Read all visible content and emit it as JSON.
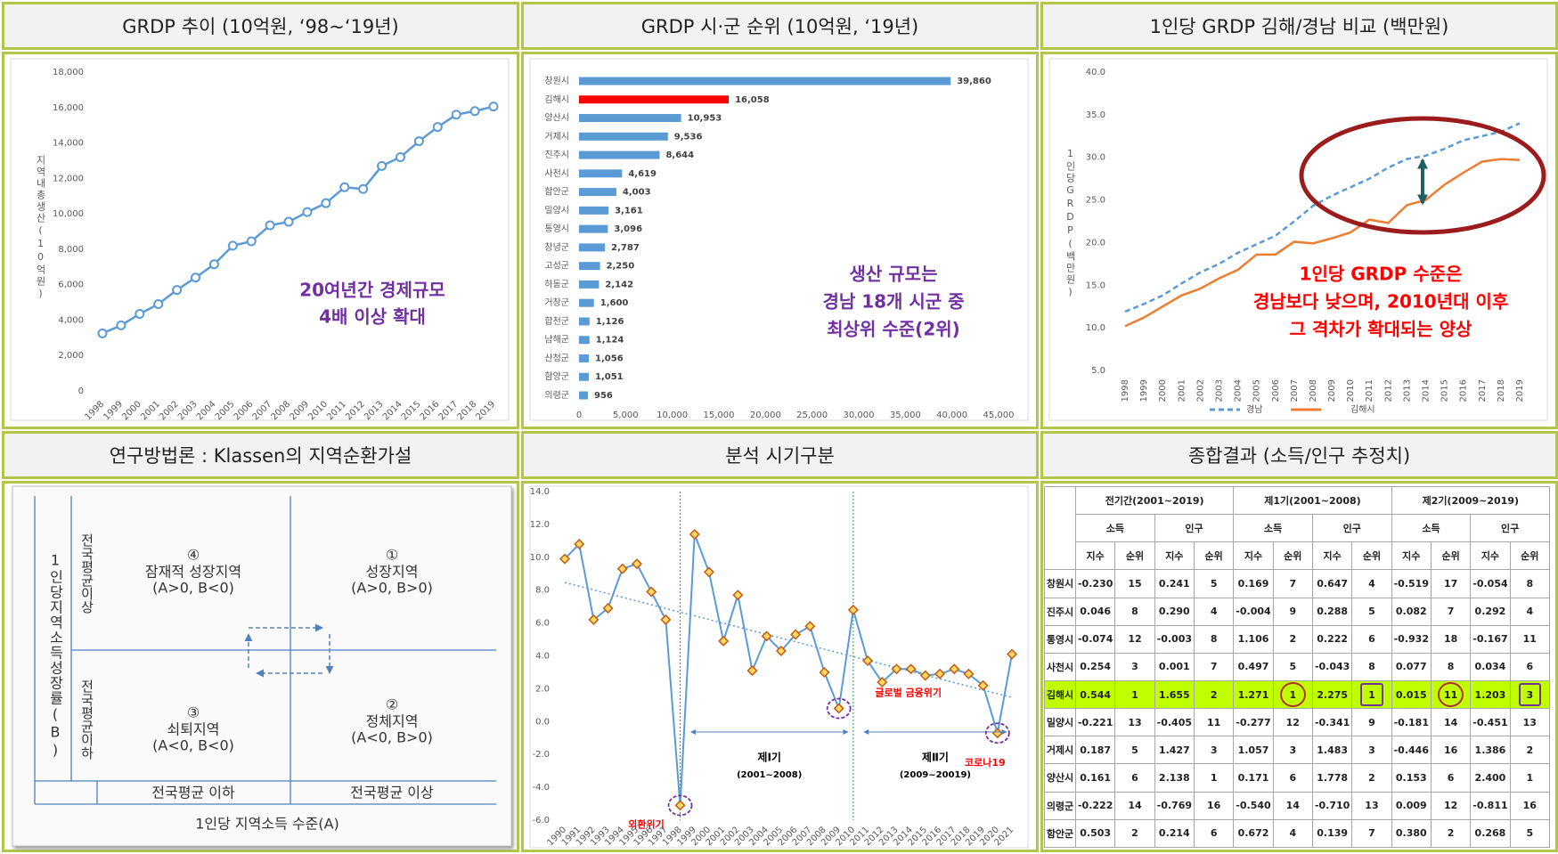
{
  "headers": [
    "GRDP 추이 (10억원, ‘98~‘19년)",
    "GRDP 시·군 순위 (10억원, ‘19년)",
    "1인당 GRDP 김해/경남 비교 (백만원)",
    "연구방법론 : Klassen의 지역순환가설",
    "분석 시기구분",
    "종합결과 (소득/인구 추정치)"
  ],
  "chart_data": [
    {
      "type": "line",
      "y_label": "지역내총생산(10억원)",
      "categories": [
        "1998",
        "1999",
        "2000",
        "2001",
        "2002",
        "2003",
        "2004",
        "2005",
        "2006",
        "2007",
        "2008",
        "2009",
        "2010",
        "2011",
        "2012",
        "2013",
        "2014",
        "2015",
        "2016",
        "2017",
        "2018",
        "2019"
      ],
      "values": [
        3250,
        3700,
        4350,
        4900,
        5700,
        6400,
        7150,
        8200,
        8450,
        9350,
        9550,
        10100,
        10600,
        11500,
        11400,
        12700,
        13200,
        14100,
        14900,
        15600,
        15800,
        16058
      ],
      "color": "#5b9bd5",
      "marker": "circle",
      "ylim": [
        0,
        18000
      ],
      "yticks": [
        0,
        {
          "value": 2000,
          "label": "2,000"
        },
        {
          "value": 4000,
          "label": "4,000"
        },
        {
          "value": 6000,
          "label": "6,000"
        },
        {
          "value": 8000,
          "label": "8,000"
        },
        {
          "value": 10000,
          "label": "10,000"
        },
        {
          "value": 12000,
          "label": "12,000"
        },
        {
          "value": 14000,
          "label": "14,000"
        },
        {
          "value": 16000,
          "label": "16,000"
        },
        {
          "value": 18000,
          "label": "18,000"
        }
      ],
      "grid": false,
      "annotation": [
        "20여년간 경제규모",
        "4배 이상 확대"
      ],
      "annotation_color": "#7030a0"
    },
    {
      "type": "bar",
      "orientation": "horizontal",
      "categories": [
        "창원시",
        "김해시",
        "양산시",
        "거제시",
        "진주시",
        "사천시",
        "함안군",
        "밀양시",
        "통영시",
        "창녕군",
        "고성군",
        "하동군",
        "거창군",
        "합천군",
        "남해군",
        "산청군",
        "함양군",
        "의령군"
      ],
      "values": [
        39860,
        16058,
        10953,
        9536,
        8644,
        4619,
        4003,
        3161,
        3096,
        2787,
        2250,
        2142,
        1600,
        1126,
        1124,
        1056,
        1051,
        956
      ],
      "value_labels": [
        "39,860",
        "16,058",
        "10,953",
        "9,536",
        "8,644",
        "4,619",
        "4,003",
        "3,161",
        "3,096",
        "2,787",
        "2,250",
        "2,142",
        "1,600",
        "1,126",
        "1,124",
        "1,056",
        "1,051",
        "956"
      ],
      "color": "#5b9bd5",
      "highlight": "김해시",
      "highlight_color": "#ff0000",
      "xlim": [
        0,
        45000
      ],
      "xticks": [
        0,
        {
          "value": 5000,
          "label": "5,000"
        },
        {
          "value": 10000,
          "label": "10,000"
        },
        {
          "value": 15000,
          "label": "15,000"
        },
        {
          "value": 20000,
          "label": "20,000"
        },
        {
          "value": 25000,
          "label": "25,000"
        },
        {
          "value": 30000,
          "label": "30,000"
        },
        {
          "value": 35000,
          "label": "35,000"
        },
        {
          "value": 40000,
          "label": "40,000"
        },
        {
          "value": 45000,
          "label": "45,000"
        }
      ],
      "annotation": [
        "생산 규모는",
        "경남 18개 시군 중",
        "최상위 수준(2위)"
      ],
      "annotation_color": "#7030a0"
    },
    {
      "type": "line",
      "y_label": "1인당GRDP(백만원)",
      "categories": [
        "1998",
        "1999",
        "2000",
        "2001",
        "2002",
        "2003",
        "2004",
        "2005",
        "2006",
        "2007",
        "2008",
        "2009",
        "2010",
        "2011",
        "2012",
        "2013",
        "2014",
        "2015",
        "2016",
        "2017",
        "2018",
        "2019"
      ],
      "series": [
        {
          "name": "경남",
          "color": "#5b9bd5",
          "dashed": true,
          "values": [
            11.9,
            12.8,
            13.8,
            15.2,
            16.5,
            17.5,
            18.8,
            19.8,
            20.8,
            22.5,
            24.3,
            25.5,
            26.5,
            27.5,
            28.8,
            29.8,
            30.2,
            31.0,
            32.0,
            32.5,
            33.0,
            34.0
          ]
        },
        {
          "name": "김해시",
          "color": "#ed7d31",
          "dashed": false,
          "values": [
            10.2,
            11.2,
            12.5,
            13.8,
            14.6,
            15.8,
            16.8,
            18.6,
            18.6,
            20.1,
            19.9,
            20.5,
            21.2,
            22.7,
            22.3,
            24.4,
            25.0,
            26.8,
            28.2,
            29.5,
            29.8,
            29.7
          ]
        }
      ],
      "ylim": [
        5,
        40
      ],
      "yticks": [
        {
          "value": 5,
          "label": "5.0"
        },
        {
          "value": 10,
          "label": "10.0"
        },
        {
          "value": 15,
          "label": "15.0"
        },
        {
          "value": 20,
          "label": "20.0"
        },
        {
          "value": 25,
          "label": "25.0"
        },
        {
          "value": 30,
          "label": "30.0"
        },
        {
          "value": 35,
          "label": "35.0"
        },
        {
          "value": 40,
          "label": "40.0"
        }
      ],
      "grid": false,
      "legend": "bottom",
      "annotation": [
        "1인당 GRDP 수준은",
        "경남보다 낮으며, 2010년대 이후",
        "그 격차가 확대되는 양상"
      ],
      "annotation_color": "#ff0000"
    },
    {
      "type": "line",
      "categories": [
        "1990",
        "1991",
        "1992",
        "1993",
        "1994",
        "1995",
        "1996",
        "1997",
        "1998",
        "1999",
        "2000",
        "2001",
        "2002",
        "2003",
        "2004",
        "2005",
        "2006",
        "2007",
        "2008",
        "2009",
        "2010",
        "2011",
        "2012",
        "2013",
        "2014",
        "2015",
        "2016",
        "2017",
        "2018",
        "2019",
        "2020",
        "2021"
      ],
      "values": [
        9.9,
        10.8,
        6.2,
        6.9,
        9.3,
        9.6,
        7.9,
        6.2,
        -5.1,
        11.4,
        9.1,
        4.9,
        7.7,
        3.1,
        5.2,
        4.3,
        5.3,
        5.8,
        3.0,
        0.8,
        6.8,
        3.7,
        2.4,
        3.2,
        3.2,
        2.8,
        2.9,
        3.2,
        2.9,
        2.2,
        -0.7,
        4.1
      ],
      "color": "#5b9bd5",
      "marker": "diamond",
      "marker_color": "#c55a11",
      "trend_line": true,
      "ylim": [
        -6,
        14
      ],
      "yticks": [
        {
          "value": -6,
          "label": "-6.0"
        },
        {
          "value": -4,
          "label": "-4.0"
        },
        {
          "value": -2,
          "label": "-2.0"
        },
        {
          "value": 0,
          "label": "0.0"
        },
        {
          "value": 2,
          "label": "2.0"
        },
        {
          "value": 4,
          "label": "4.0"
        },
        {
          "value": 6,
          "label": "6.0"
        },
        {
          "value": 8,
          "label": "8.0"
        },
        {
          "value": 10,
          "label": "10.0"
        },
        {
          "value": 12,
          "label": "12.0"
        },
        {
          "value": 14,
          "label": "14.0"
        }
      ],
      "grid": false,
      "period_lines": [
        "1998",
        "2010"
      ],
      "period_line_color": "#00b050",
      "periods": [
        {
          "name": "제Ⅰ기",
          "range": "(2001~2008)"
        },
        {
          "name": "제Ⅱ기",
          "range": "(2009~20019)"
        }
      ],
      "events": [
        {
          "text": "외환위기",
          "at": "1998"
        },
        {
          "text": "글로벌 금융위기",
          "at": "2009"
        },
        {
          "text": "코로나19",
          "at": "2020"
        }
      ]
    }
  ],
  "diagram": {
    "y_axis": "1인당지역소득성장률(B)",
    "x_axis": "1인당 지역소득 수준(A)",
    "above_avg_v": "전국평균이상",
    "below_avg_v": "전국평균이하",
    "below_avg_h": "전국평균 이하",
    "above_avg_h": "전국평균 이상",
    "quadrants": [
      {
        "num": "④",
        "name": "잠재적 성장지역",
        "cond": "(A>0, B<0)"
      },
      {
        "num": "①",
        "name": "성장지역",
        "cond": "(A>0, B>0)"
      },
      {
        "num": "③",
        "name": "쇠퇴지역",
        "cond": "(A<0, B<0)"
      },
      {
        "num": "②",
        "name": "정체지역",
        "cond": "(A<0, B>0)"
      }
    ]
  },
  "table": {
    "groups": [
      "전기간(2001~2019)",
      "제1기(2001~2008)",
      "제2기(2009~2019)"
    ],
    "subgroups": [
      "소득",
      "인구",
      "소득",
      "인구",
      "소득",
      "인구"
    ],
    "columns": [
      "지수",
      "순위",
      "지수",
      "순위",
      "지수",
      "순위",
      "지수",
      "순위",
      "지수",
      "순위",
      "지수",
      "순위"
    ],
    "highlight_row": "김해시",
    "rows": [
      [
        "창원시",
        "-0.230",
        "15",
        "0.241",
        "5",
        "0.169",
        "7",
        "0.647",
        "4",
        "-0.519",
        "17",
        "-0.054",
        "8"
      ],
      [
        "진주시",
        "0.046",
        "8",
        "0.290",
        "4",
        "-0.004",
        "9",
        "0.288",
        "5",
        "0.082",
        "7",
        "0.292",
        "4"
      ],
      [
        "통영시",
        "-0.074",
        "12",
        "-0.003",
        "8",
        "1.106",
        "2",
        "0.222",
        "6",
        "-0.932",
        "18",
        "-0.167",
        "11"
      ],
      [
        "사천시",
        "0.254",
        "3",
        "0.001",
        "7",
        "0.497",
        "5",
        "-0.043",
        "8",
        "0.077",
        "8",
        "0.034",
        "6"
      ],
      [
        "김해시",
        "0.544",
        "1",
        "1.655",
        "2",
        "1.271",
        "1",
        "2.275",
        "1",
        "0.015",
        "11",
        "1.203",
        "3"
      ],
      [
        "밀양시",
        "-0.221",
        "13",
        "-0.405",
        "11",
        "-0.277",
        "12",
        "-0.341",
        "9",
        "-0.181",
        "14",
        "-0.451",
        "13"
      ],
      [
        "거제시",
        "0.187",
        "5",
        "1.427",
        "3",
        "1.057",
        "3",
        "1.483",
        "3",
        "-0.446",
        "16",
        "1.386",
        "2"
      ],
      [
        "양산시",
        "0.161",
        "6",
        "2.138",
        "1",
        "0.171",
        "6",
        "1.778",
        "2",
        "0.153",
        "6",
        "2.400",
        "1"
      ],
      [
        "의령군",
        "-0.222",
        "14",
        "-0.769",
        "16",
        "-0.540",
        "14",
        "-0.710",
        "13",
        "0.009",
        "12",
        "-0.811",
        "16"
      ],
      [
        "함안군",
        "0.503",
        "2",
        "0.214",
        "6",
        "0.672",
        "4",
        "0.139",
        "7",
        "0.380",
        "2",
        "0.268",
        "5"
      ]
    ]
  }
}
